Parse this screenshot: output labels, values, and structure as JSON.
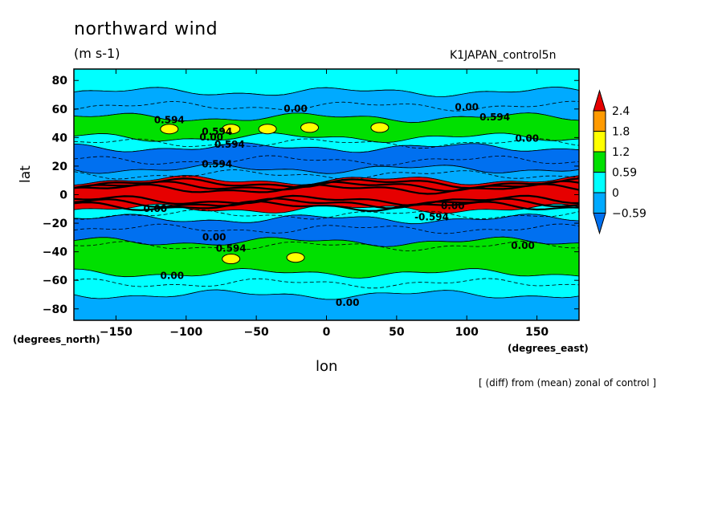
{
  "chart_data": {
    "type": "heatmap",
    "title": "northward wind",
    "units": "(m s-1)",
    "dataset": "K1JAPAN_control5n",
    "xlabel": "lon",
    "ylabel": "lat",
    "xunits": "(degrees_east)",
    "yunits": "(degrees_north)",
    "note": "[ (diff) from (mean) zonal of control ]",
    "xlim": [
      -180,
      180
    ],
    "ylim": [
      -88,
      88
    ],
    "xticks": [
      -150,
      -100,
      -50,
      0,
      50,
      100,
      150
    ],
    "yticks": [
      80,
      60,
      40,
      20,
      0,
      -20,
      -40,
      -60,
      -80
    ],
    "colorbar": {
      "levels": [
        2.4,
        1.8,
        1.2,
        0.59,
        0,
        -0.59
      ],
      "colors": [
        "#e60000",
        "#ff9a00",
        "#ffff00",
        "#00e000",
        "#00ffff",
        "#00aaff",
        "#0070f0"
      ]
    },
    "zonal_bands": [
      {
        "lat_from": 88,
        "lat_to": 72,
        "value": "0 to 0.59",
        "color": "#00ffff"
      },
      {
        "lat_from": 72,
        "lat_to": 54,
        "value": "-0.59 to 0",
        "color": "#00aaff"
      },
      {
        "lat_from": 54,
        "lat_to": 40,
        "value": "0.59 to 1.2",
        "color": "#00e000"
      },
      {
        "lat_from": 40,
        "lat_to": 33,
        "value": "0 to 0.59",
        "color": "#00ffff"
      },
      {
        "lat_from": 33,
        "lat_to": 18,
        "value": "< -0.59",
        "color": "#0070f0"
      },
      {
        "lat_from": 18,
        "lat_to": 10,
        "value": "-0.59 to 0",
        "color": "#00aaff"
      },
      {
        "lat_from": 10,
        "lat_to": -10,
        "value": "> 2.4",
        "color": "#e60000"
      },
      {
        "lat_from": -10,
        "lat_to": -17,
        "value": "0 to 0.59",
        "color": "#00ffff"
      },
      {
        "lat_from": -17,
        "lat_to": -33,
        "value": "< -0.59",
        "color": "#0070f0"
      },
      {
        "lat_from": -33,
        "lat_to": -55,
        "value": "0.59 to 1.2",
        "color": "#00e000"
      },
      {
        "lat_from": -55,
        "lat_to": -70,
        "value": "0 to 0.59",
        "color": "#00ffff"
      },
      {
        "lat_from": -70,
        "lat_to": -88,
        "value": "-0.59 to 0",
        "color": "#00aaff"
      }
    ],
    "yellow_maxima": [
      {
        "lon": -112,
        "lat": 46
      },
      {
        "lon": -68,
        "lat": 46
      },
      {
        "lon": -42,
        "lat": 46
      },
      {
        "lon": -12,
        "lat": 47
      },
      {
        "lon": 38,
        "lat": 47
      },
      {
        "lon": -68,
        "lat": -45
      },
      {
        "lon": -22,
        "lat": -44
      }
    ],
    "contour_labels": [
      {
        "text": "0.00",
        "lon": -22,
        "lat": 58
      },
      {
        "text": "0.00",
        "lon": 100,
        "lat": 59
      },
      {
        "text": "0.594",
        "lon": 120,
        "lat": 52
      },
      {
        "text": "0.594",
        "lon": -112,
        "lat": 50
      },
      {
        "text": "0.594",
        "lon": -78,
        "lat": 42
      },
      {
        "text": "0.00",
        "lon": -82,
        "lat": 38
      },
      {
        "text": "0.594",
        "lon": -69,
        "lat": 33
      },
      {
        "text": "0.00",
        "lon": 143,
        "lat": 37
      },
      {
        "text": "0.594",
        "lon": -78,
        "lat": 19
      },
      {
        "text": "0.00",
        "lon": -122,
        "lat": -12
      },
      {
        "text": "0.00",
        "lon": 90,
        "lat": -10
      },
      {
        "text": "-0.594",
        "lon": 75,
        "lat": -18
      },
      {
        "text": "0.00",
        "lon": -80,
        "lat": -32
      },
      {
        "text": "0.594",
        "lon": -68,
        "lat": -40
      },
      {
        "text": "0.00",
        "lon": 140,
        "lat": -38
      },
      {
        "text": "0.00",
        "lon": -110,
        "lat": -59
      },
      {
        "text": "0.00",
        "lon": 15,
        "lat": -78
      }
    ]
  }
}
